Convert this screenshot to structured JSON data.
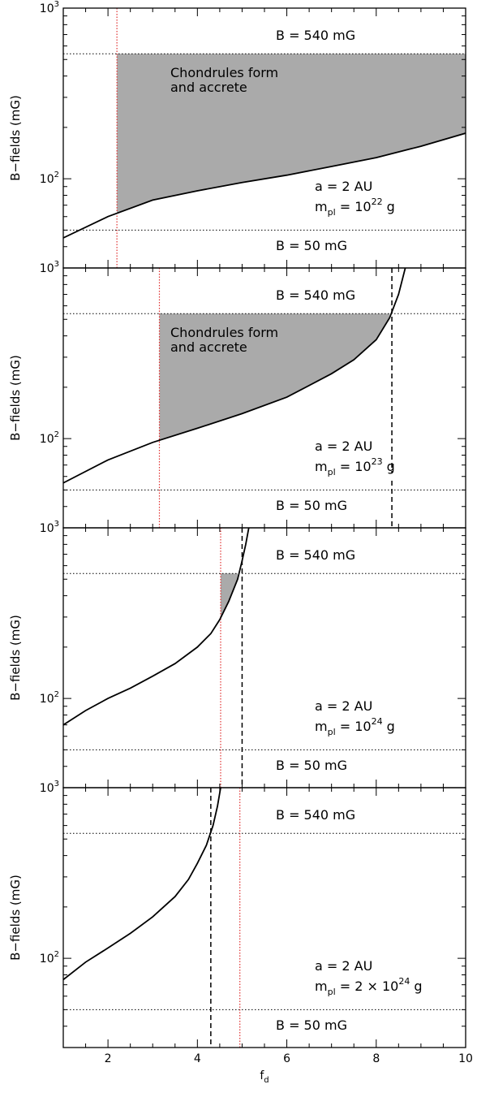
{
  "chart_data": [
    {
      "type": "line",
      "panel": 1,
      "xlabel": "",
      "ylabel": "B−fields (mG)",
      "xlim": [
        1,
        10
      ],
      "ylim": [
        30,
        1000
      ],
      "yscale": "log",
      "yticks": [
        {
          "value": 100,
          "base": "10",
          "exp": "2"
        },
        {
          "value": 1000,
          "base": "10",
          "exp": "3"
        }
      ],
      "xticks": [],
      "series": [
        {
          "x": [
            1,
            2,
            3,
            4,
            5,
            6,
            7,
            8,
            9,
            10
          ],
          "y": [
            45,
            60,
            75,
            85,
            95,
            105,
            118,
            133,
            155,
            185
          ]
        }
      ],
      "red_line_x": 2.2,
      "dashed_line_x": null,
      "b_upper": 540,
      "b_lower": 50,
      "shade": {
        "x": [
          2.2,
          10
        ],
        "upper": 540
      },
      "labels": {
        "b_upper": "B = 540 mG",
        "b_lower": "B = 50 mG",
        "region": [
          "Chondrules form",
          "and accrete"
        ],
        "a": "a = 2 AU",
        "mpl_base": "m",
        "mpl_sub": "pl",
        "mpl_pre": " = 10",
        "mpl_exp": "22",
        "mpl_post": " g"
      }
    },
    {
      "type": "line",
      "panel": 2,
      "xlabel": "",
      "ylabel": "B−fields (mG)",
      "xlim": [
        1,
        10
      ],
      "ylim": [
        30,
        1000
      ],
      "yscale": "log",
      "yticks": [
        {
          "value": 100,
          "base": "10",
          "exp": "2"
        },
        {
          "value": 1000,
          "base": "10",
          "exp": "3"
        }
      ],
      "xticks": [],
      "series": [
        {
          "x": [
            1,
            2,
            3,
            4,
            5,
            6,
            7,
            7.5,
            8,
            8.3,
            8.5,
            8.65
          ],
          "y": [
            55,
            75,
            95,
            115,
            140,
            175,
            240,
            290,
            380,
            510,
            700,
            1000
          ]
        }
      ],
      "red_line_x": 3.15,
      "dashed_line_x": 8.35,
      "b_upper": 540,
      "b_lower": 50,
      "shade": {
        "x": [
          3.15,
          8.3
        ],
        "upper": 540
      },
      "labels": {
        "b_upper": "B = 540 mG",
        "b_lower": "B = 50 mG",
        "region": [
          "Chondrules form",
          "and accrete"
        ],
        "a": "a = 2 AU",
        "mpl_base": "m",
        "mpl_sub": "pl",
        "mpl_pre": " = 10",
        "mpl_exp": "23",
        "mpl_post": " g"
      }
    },
    {
      "type": "line",
      "panel": 3,
      "xlabel": "",
      "ylabel": "B−fields (mG)",
      "xlim": [
        1,
        10
      ],
      "ylim": [
        30,
        1000
      ],
      "yscale": "log",
      "yticks": [
        {
          "value": 100,
          "base": "10",
          "exp": "2"
        },
        {
          "value": 1000,
          "base": "10",
          "exp": "3"
        }
      ],
      "xticks": [],
      "series": [
        {
          "x": [
            1,
            1.5,
            2,
            2.5,
            3,
            3.5,
            4,
            4.3,
            4.5,
            4.7,
            4.9,
            5.0,
            5.08,
            5.15
          ],
          "y": [
            70,
            85,
            100,
            115,
            135,
            160,
            200,
            240,
            290,
            370,
            500,
            640,
            800,
            1000
          ]
        }
      ],
      "red_line_x": 4.52,
      "dashed_line_x": 5.0,
      "b_upper": 540,
      "b_lower": 50,
      "shade": {
        "x": [
          4.52,
          4.9
        ],
        "upper": 540
      },
      "labels": {
        "b_upper": "B = 540 mG",
        "b_lower": "B = 50 mG",
        "region": [],
        "a": "a = 2 AU",
        "mpl_base": "m",
        "mpl_sub": "pl",
        "mpl_pre": " = 10",
        "mpl_exp": "24",
        "mpl_post": " g"
      }
    },
    {
      "type": "line",
      "panel": 4,
      "xlabel": "f",
      "xlabel_sub": "d",
      "ylabel": "B−fields (mG)",
      "xlim": [
        1,
        10
      ],
      "ylim": [
        30,
        1000
      ],
      "yscale": "log",
      "yticks": [
        {
          "value": 100,
          "base": "10",
          "exp": "2"
        },
        {
          "value": 1000,
          "base": "10",
          "exp": "3"
        }
      ],
      "xticks": [
        2,
        4,
        6,
        8,
        10
      ],
      "series": [
        {
          "x": [
            1,
            1.5,
            2,
            2.5,
            3,
            3.5,
            3.8,
            4.0,
            4.2,
            4.35,
            4.45,
            4.52
          ],
          "y": [
            75,
            95,
            115,
            140,
            175,
            230,
            290,
            360,
            460,
            600,
            780,
            1000
          ]
        }
      ],
      "red_line_x": 4.95,
      "dashed_line_x": 4.3,
      "b_upper": 540,
      "b_lower": 50,
      "shade": null,
      "labels": {
        "b_upper": "B = 540 mG",
        "b_lower": "B = 50 mG",
        "region": [],
        "a": "a = 2 AU",
        "mpl_base": "m",
        "mpl_sub": "pl",
        "mpl_pre": " = 2 × 10",
        "mpl_exp": "24",
        "mpl_post": " g"
      }
    }
  ]
}
